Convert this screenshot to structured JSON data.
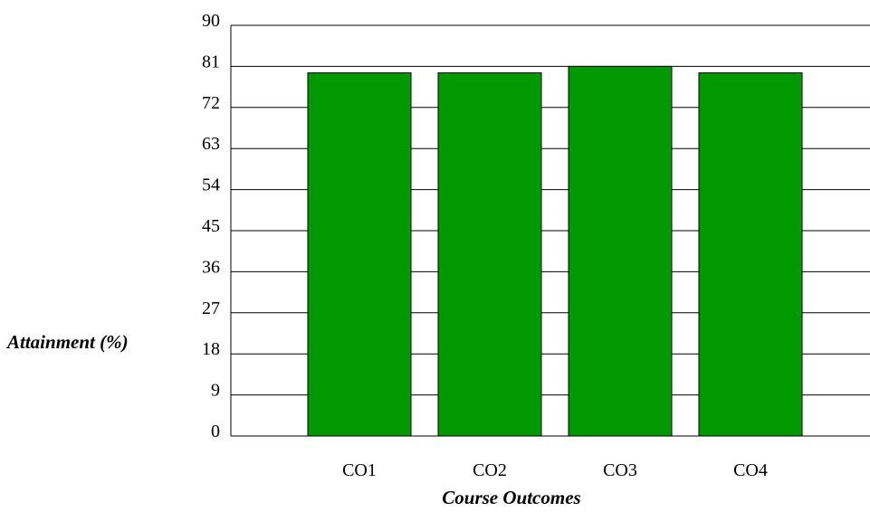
{
  "chart_data": {
    "type": "bar",
    "title": "",
    "xlabel": "Course Outcomes",
    "ylabel": "Attainment (%)",
    "categories": [
      "CO1",
      "CO2",
      "CO3",
      "CO4"
    ],
    "values": [
      79.6,
      79.6,
      81.0,
      79.6
    ],
    "ylim": [
      0,
      90
    ],
    "yticks": [
      "0",
      "9",
      "18",
      "27",
      "36",
      "45",
      "54",
      "63",
      "72",
      "81",
      "90"
    ],
    "grid": true,
    "legend": "none",
    "bar_color": "#009900"
  }
}
